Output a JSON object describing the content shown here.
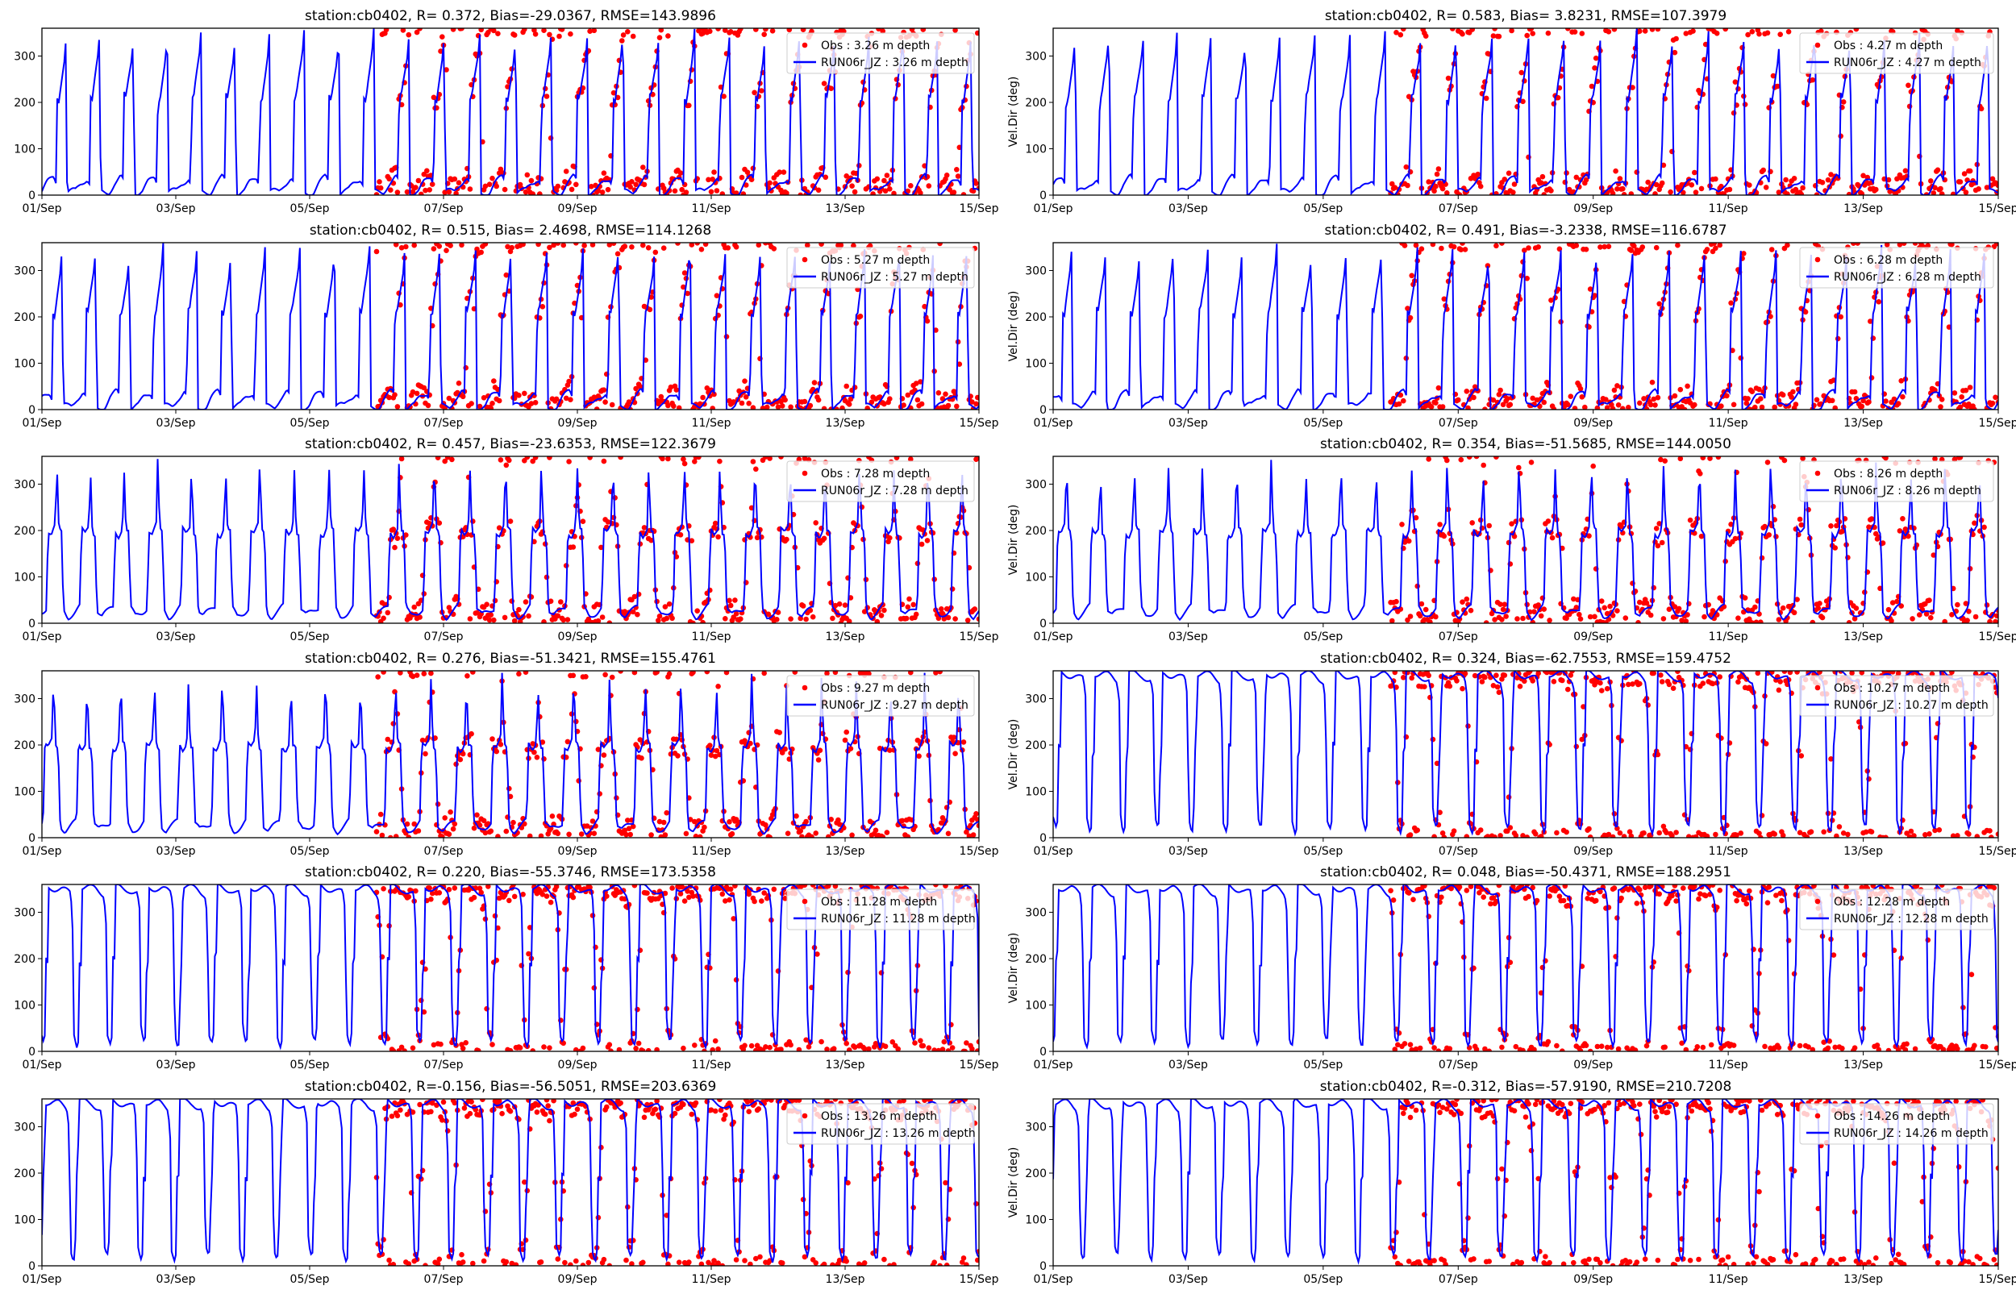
{
  "colors": {
    "obs": "#ff0000",
    "model": "#0000ff"
  },
  "chart_data": [
    {
      "type": "line+scatter",
      "title": "station:cb0402, R= 0.372, Bias=-29.0367, RMSE=143.9896",
      "legend": [
        "Obs : 3.26 m depth",
        "RUN06r_JZ : 3.26 m depth"
      ],
      "ylabel": "",
      "profile": "shallow",
      "phase_offset": 0.0
    },
    {
      "type": "line+scatter",
      "title": "station:cb0402, R= 0.583, Bias= 3.8231, RMSE=107.3979",
      "legend": [
        "Obs : 4.27 m depth",
        "RUN06r_JZ : 4.27 m depth"
      ],
      "ylabel": "Vel.Dir (deg)",
      "profile": "shallow",
      "phase_offset": 0.3
    },
    {
      "type": "line+scatter",
      "title": "station:cb0402, R= 0.515, Bias= 2.4698, RMSE=114.1268",
      "legend": [
        "Obs : 5.27 m depth",
        "RUN06r_JZ : 5.27 m depth"
      ],
      "ylabel": "",
      "profile": "shallow",
      "phase_offset": 0.5
    },
    {
      "type": "line+scatter",
      "title": "station:cb0402, R= 0.491, Bias=-3.2338, RMSE=116.6787",
      "legend": [
        "Obs : 6.28 m depth",
        "RUN06r_JZ : 6.28 m depth"
      ],
      "ylabel": "Vel.Dir (deg)",
      "profile": "shallow",
      "phase_offset": 0.7
    },
    {
      "type": "line+scatter",
      "title": "station:cb0402, R= 0.457, Bias=-23.6353, RMSE=122.3679",
      "legend": [
        "Obs : 7.28 m depth",
        "RUN06r_JZ : 7.28 m depth"
      ],
      "ylabel": "",
      "profile": "mid",
      "phase_offset": 0.9
    },
    {
      "type": "line+scatter",
      "title": "station:cb0402, R= 0.354, Bias=-51.5685, RMSE=144.0050",
      "legend": [
        "Obs : 8.26 m depth",
        "RUN06r_JZ : 8.26 m depth"
      ],
      "ylabel": "Vel.Dir (deg)",
      "profile": "mid",
      "phase_offset": 1.1
    },
    {
      "type": "line+scatter",
      "title": "station:cb0402, R= 0.276, Bias=-51.3421, RMSE=155.4761",
      "legend": [
        "Obs : 9.27 m depth",
        "RUN06r_JZ : 9.27 m depth"
      ],
      "ylabel": "",
      "profile": "mid",
      "phase_offset": 1.3
    },
    {
      "type": "line+scatter",
      "title": "station:cb0402, R= 0.324, Bias=-62.7553, RMSE=159.4752",
      "legend": [
        "Obs : 10.27 m depth",
        "RUN06r_JZ : 10.27 m depth"
      ],
      "ylabel": "Vel.Dir (deg)",
      "profile": "deep",
      "phase_offset": 1.5
    },
    {
      "type": "line+scatter",
      "title": "station:cb0402, R= 0.220, Bias=-55.3746, RMSE=173.5358",
      "legend": [
        "Obs : 11.28 m depth",
        "RUN06r_JZ : 11.28 m depth"
      ],
      "ylabel": "",
      "profile": "deep",
      "phase_offset": 1.7
    },
    {
      "type": "line+scatter",
      "title": "station:cb0402, R= 0.048, Bias=-50.4371, RMSE=188.2951",
      "legend": [
        "Obs : 12.28 m depth",
        "RUN06r_JZ : 12.28 m depth"
      ],
      "ylabel": "Vel.Dir (deg)",
      "profile": "deep",
      "phase_offset": 1.9
    },
    {
      "type": "line+scatter",
      "title": "station:cb0402, R=-0.156, Bias=-56.5051, RMSE=203.6369",
      "legend": [
        "Obs : 13.26 m depth",
        "RUN06r_JZ : 13.26 m depth"
      ],
      "ylabel": "",
      "profile": "deep",
      "phase_offset": 2.1
    },
    {
      "type": "line+scatter",
      "title": "station:cb0402, R=-0.312, Bias=-57.9190, RMSE=210.7208",
      "legend": [
        "Obs : 14.26 m depth",
        "RUN06r_JZ : 14.26 m depth"
      ],
      "ylabel": "Vel.Dir (deg)",
      "profile": "deep",
      "phase_offset": 2.3
    }
  ],
  "axes": {
    "xticks": [
      "01/Sep",
      "03/Sep",
      "05/Sep",
      "07/Sep",
      "09/Sep",
      "11/Sep",
      "13/Sep",
      "15/Sep"
    ],
    "xlim_days": [
      0,
      14
    ],
    "yticks": [
      0,
      100,
      200,
      300
    ],
    "ylim": [
      0,
      360
    ],
    "obs_start_day": 5,
    "tidal_period_hours": 12.42
  },
  "profiles": {
    "shallow": [
      [
        0,
        8
      ],
      [
        0.15,
        25
      ],
      [
        0.35,
        38
      ],
      [
        0.42,
        28
      ],
      [
        0.45,
        215
      ],
      [
        0.5,
        205
      ],
      [
        0.55,
        235
      ],
      [
        0.68,
        300
      ],
      [
        0.73,
        355
      ],
      [
        0.75,
        5
      ]
    ],
    "mid": [
      [
        0,
        15
      ],
      [
        0.2,
        25
      ],
      [
        0.35,
        35
      ],
      [
        0.4,
        200
      ],
      [
        0.5,
        190
      ],
      [
        0.62,
        210
      ],
      [
        0.66,
        350
      ],
      [
        0.72,
        200
      ],
      [
        0.8,
        195
      ],
      [
        0.86,
        30
      ],
      [
        1,
        15
      ]
    ],
    "deep": [
      [
        0,
        350
      ],
      [
        0.25,
        340
      ],
      [
        0.32,
        300
      ],
      [
        0.36,
        40
      ],
      [
        0.45,
        15
      ],
      [
        0.5,
        30
      ],
      [
        0.53,
        200
      ],
      [
        0.58,
        190
      ],
      [
        0.6,
        355
      ],
      [
        1,
        350
      ]
    ]
  }
}
